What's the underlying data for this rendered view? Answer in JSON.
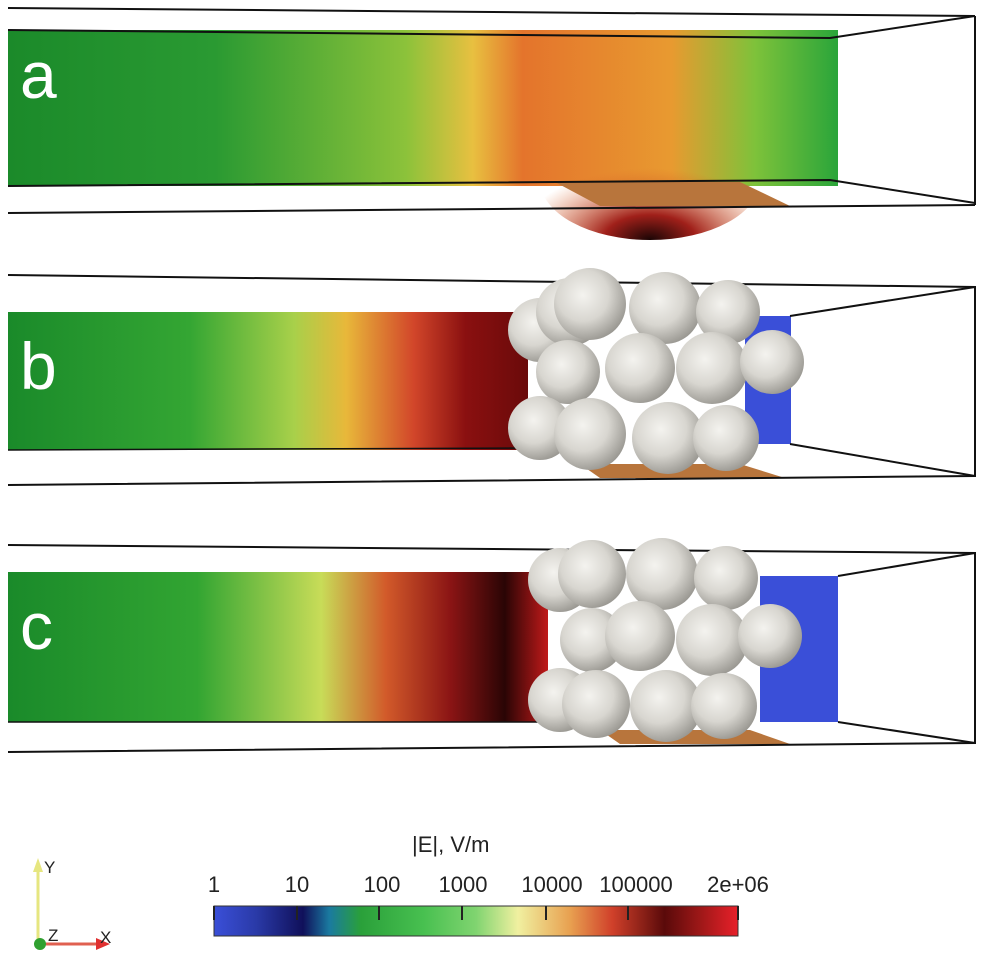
{
  "panels": [
    {
      "label": "a"
    },
    {
      "label": "b"
    },
    {
      "label": "c"
    }
  ],
  "colorbar": {
    "title": "|E|, V/m",
    "ticks": [
      "1",
      "10",
      "100",
      "1000",
      "10000",
      "100000",
      "2e+06"
    ],
    "scale": "log",
    "range": [
      1,
      2000000
    ],
    "colors": [
      "#3a4fd8",
      "#1a1a6b",
      "#1fa82a",
      "#7bd36a",
      "#f2f08a",
      "#e07a2a",
      "#3a0a0a",
      "#e0202a"
    ]
  },
  "axes_triad": {
    "x": "X",
    "y": "Y",
    "z": "Z"
  }
}
